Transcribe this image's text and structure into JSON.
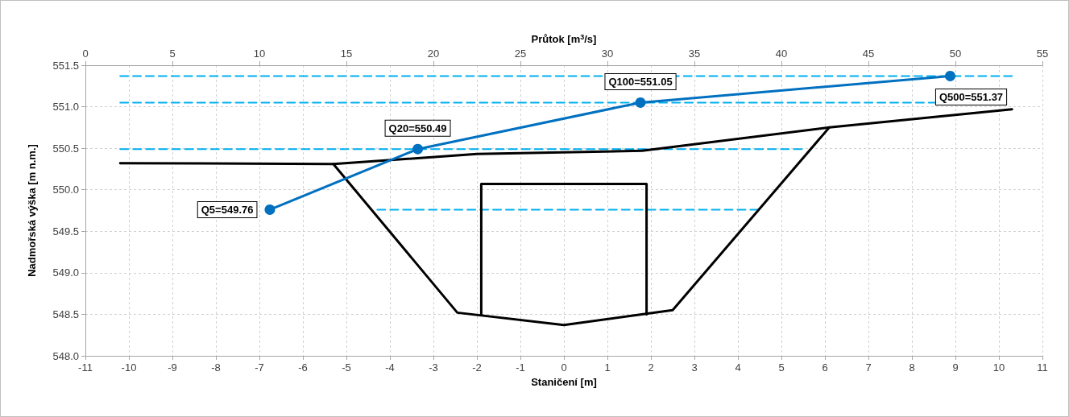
{
  "chart_data": {
    "type": "line",
    "xlabel": "Staničení [m]",
    "x2label": "Průtok [m$^{3}$/s]",
    "ylabel": "Nadmořská výška [m n.m.]",
    "xlim": [
      -11,
      11
    ],
    "xticks": [
      -11,
      -10,
      -9,
      -8,
      -7,
      -6,
      -5,
      -4,
      -3,
      -2,
      -1,
      0,
      1,
      2,
      3,
      4,
      5,
      6,
      7,
      8,
      9,
      10,
      11
    ],
    "x2lim": [
      0,
      55
    ],
    "x2ticks": [
      0,
      5,
      10,
      15,
      20,
      25,
      30,
      35,
      40,
      45,
      50,
      55
    ],
    "ylim": [
      548,
      551.5
    ],
    "yticks": [
      {
        "value": 548,
        "label": "548.0"
      },
      {
        "value": 548.5,
        "label": "548.5"
      },
      {
        "value": 549,
        "label": "549.0"
      },
      {
        "value": 549.5,
        "label": "549.5"
      },
      {
        "value": 550,
        "label": "550.0"
      },
      {
        "value": 550.5,
        "label": "550.5"
      },
      {
        "value": 551,
        "label": "551.0"
      },
      {
        "value": 551.5,
        "label": "551.5"
      }
    ],
    "grid": true,
    "series": [
      {
        "color": "#00b0f0",
        "line_style": "dashed",
        "marker": "none",
        "x": [
          -10.2,
          10.3
        ],
        "values": [
          551.37,
          551.37
        ]
      },
      {
        "color": "#00b0f0",
        "line_style": "dashed",
        "marker": "none",
        "x": [
          -10.2,
          8.57
        ],
        "values": [
          551.05,
          551.05
        ]
      },
      {
        "color": "#00b0f0",
        "line_style": "dashed",
        "marker": "none",
        "x": [
          -10.2,
          5.47
        ],
        "values": [
          550.49,
          550.49
        ]
      },
      {
        "color": "#00b0f0",
        "line_style": "dashed",
        "marker": "none",
        "x": [
          -4.29,
          4.47
        ],
        "values": [
          549.76,
          549.76
        ]
      },
      {
        "color": "#000000",
        "line_style": "solid",
        "marker": "none",
        "x": [
          -10.2,
          -5.3,
          -2,
          1.8,
          6.1,
          10.3
        ],
        "values": [
          550.32,
          550.31,
          550.43,
          550.47,
          550.75,
          550.97
        ]
      },
      {
        "color": "#000000",
        "line_style": "solid",
        "marker": "none",
        "x": [
          -5.3,
          -2.45,
          0,
          2.5,
          6.1
        ],
        "values": [
          550.31,
          548.52,
          548.37,
          548.55,
          550.75
        ]
      },
      {
        "color": "#000000",
        "line_style": "solid",
        "marker": "none",
        "x": [
          -1.9,
          -1.9,
          1.9,
          1.9
        ],
        "values": [
          548.49,
          550.07,
          550.07,
          548.5
        ]
      },
      {
        "color": "#0070c0",
        "line_style": "solid",
        "marker": "circle",
        "axis": "x2",
        "x": [
          10.6,
          19.1,
          31.9,
          49.7
        ],
        "values": [
          549.76,
          550.49,
          551.05,
          551.37
        ],
        "value_labels": [
          "Q5=549.76",
          "Q20=550.49",
          "Q100=551.05",
          "Q500=551.37"
        ]
      }
    ]
  }
}
